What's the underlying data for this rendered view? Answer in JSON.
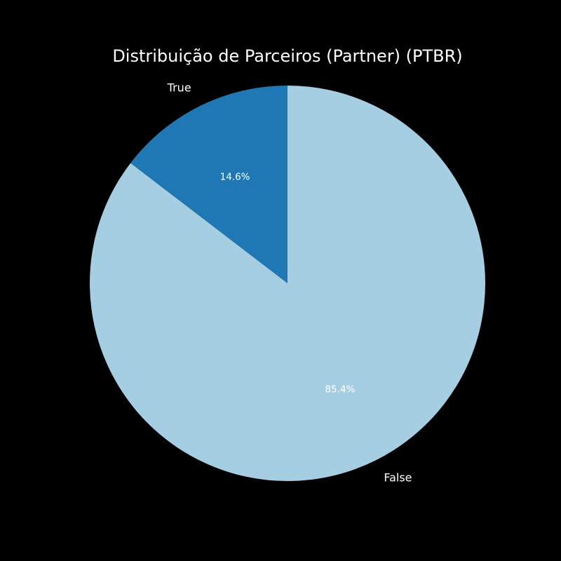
{
  "chart_data": {
    "type": "pie",
    "title": "Distribuição de Parceiros (Partner) (PTBR)",
    "slices": [
      {
        "label": "True",
        "value": 14.6,
        "pct_label": "14.6%",
        "color": "#1f78b4"
      },
      {
        "label": "False",
        "value": 85.4,
        "pct_label": "85.4%",
        "color": "#a6cee3"
      }
    ],
    "start_angle_deg": 90,
    "direction": "counterclockwise"
  },
  "background_color": "#000000",
  "text_color": "#ffffff"
}
